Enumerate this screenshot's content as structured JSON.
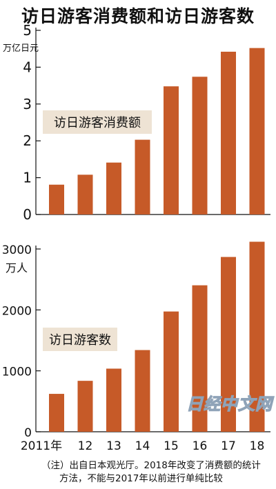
{
  "chart_title": "访日游客消费额和访日游客数",
  "chart_data": [
    {
      "type": "bar",
      "label": "访日游客消费额",
      "unit": "万亿日元",
      "categories": [
        "2011年",
        "12",
        "13",
        "14",
        "15",
        "16",
        "17",
        "18"
      ],
      "values": [
        0.81,
        1.08,
        1.41,
        2.03,
        3.48,
        3.74,
        4.42,
        4.52
      ],
      "ylim": [
        0,
        5
      ],
      "yticks": [
        "0",
        "1",
        "2",
        "3",
        "4",
        "5"
      ],
      "bar_color": "#c65a28"
    },
    {
      "type": "bar",
      "label": "访日游客数",
      "unit": "万人",
      "categories": [
        "2011年",
        "12",
        "13",
        "14",
        "15",
        "16",
        "17",
        "18"
      ],
      "values": [
        622,
        836,
        1036,
        1341,
        1974,
        2404,
        2869,
        3119
      ],
      "ylim": [
        0,
        3000
      ],
      "yticks": [
        "0",
        "1000",
        "2000",
        "3000"
      ],
      "bar_color": "#c65a28"
    }
  ],
  "x_tick_labels": [
    "2011年",
    "12",
    "13",
    "14",
    "15",
    "16",
    "17",
    "18"
  ],
  "note_line1": "（注）出自日本观光厅。2018年改变了消费额的统计",
  "note_line2": "方法，不能与2017年以前进行单纯比较",
  "watermark": "日经中文网",
  "colors": {
    "bar": "#c65a28",
    "label_bg": "#eee3d4",
    "axis": "#111111"
  }
}
